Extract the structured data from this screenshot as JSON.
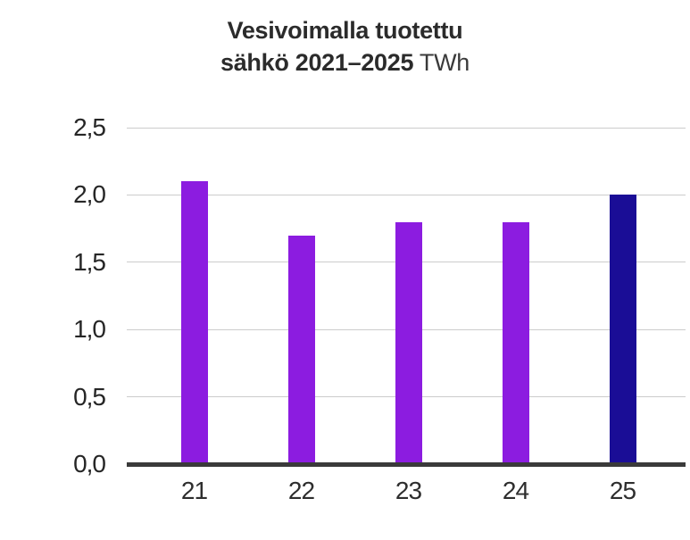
{
  "title": {
    "line1": "Vesivoimalla tuotettu",
    "line2_bold": "sähkö 2021–2025",
    "line2_unit": " TWh"
  },
  "chart_data": {
    "type": "bar",
    "title": "Vesivoimalla tuotettu sähkö 2021–2025 TWh",
    "categories": [
      "21",
      "22",
      "23",
      "24",
      "25"
    ],
    "values": [
      2.1,
      1.7,
      1.8,
      1.8,
      2.0
    ],
    "xlabel": "",
    "ylabel": "",
    "ylim": [
      0,
      2.5
    ],
    "yticks": [
      0,
      0.5,
      1,
      1.5,
      2,
      2.5
    ],
    "ytick_labels": [
      "0,0",
      "0,5",
      "1,0",
      "1,5",
      "2,0",
      "2,5"
    ],
    "grid": true,
    "legend": false,
    "bar_color": "#8c1ce0",
    "highlight_index": 4,
    "highlight_color": "#1a0d96",
    "grid_color": "#cccccc",
    "axis_color": "#3a3a3a",
    "label_color": "#2e2e2e"
  }
}
